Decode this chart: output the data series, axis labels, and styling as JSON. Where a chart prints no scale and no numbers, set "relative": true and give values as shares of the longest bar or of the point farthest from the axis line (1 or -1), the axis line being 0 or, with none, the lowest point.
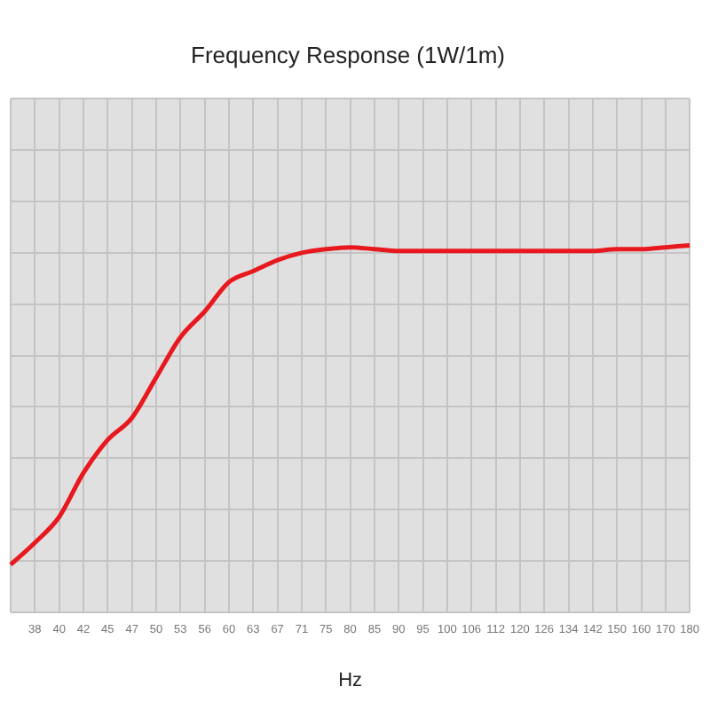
{
  "chart_data": {
    "type": "line",
    "title": "Frequency Response (1W/1m)",
    "xlabel": "Hz",
    "relative": true,
    "categories": [
      null,
      "38",
      "40",
      "42",
      "45",
      "47",
      "50",
      "53",
      "56",
      "60",
      "63",
      "67",
      "71",
      "75",
      "80",
      "85",
      "90",
      "95",
      "100",
      "106",
      "112",
      "120",
      "126",
      "134",
      "142",
      "150",
      "160",
      "170",
      "180"
    ],
    "series": [
      {
        "color": "#e8191e",
        "values": [
          0.13,
          0.19,
          0.26,
          0.38,
          0.47,
          0.53,
          0.64,
          0.75,
          0.82,
          0.9,
          0.93,
          0.96,
          0.98,
          0.99,
          0.995,
          0.99,
          0.985,
          0.985,
          0.985,
          0.985,
          0.985,
          0.985,
          0.985,
          0.985,
          0.985,
          0.99,
          0.99,
          0.995,
          1
        ]
      }
    ],
    "grid": true,
    "legend": false,
    "marker": "none",
    "line_style": "solid"
  }
}
